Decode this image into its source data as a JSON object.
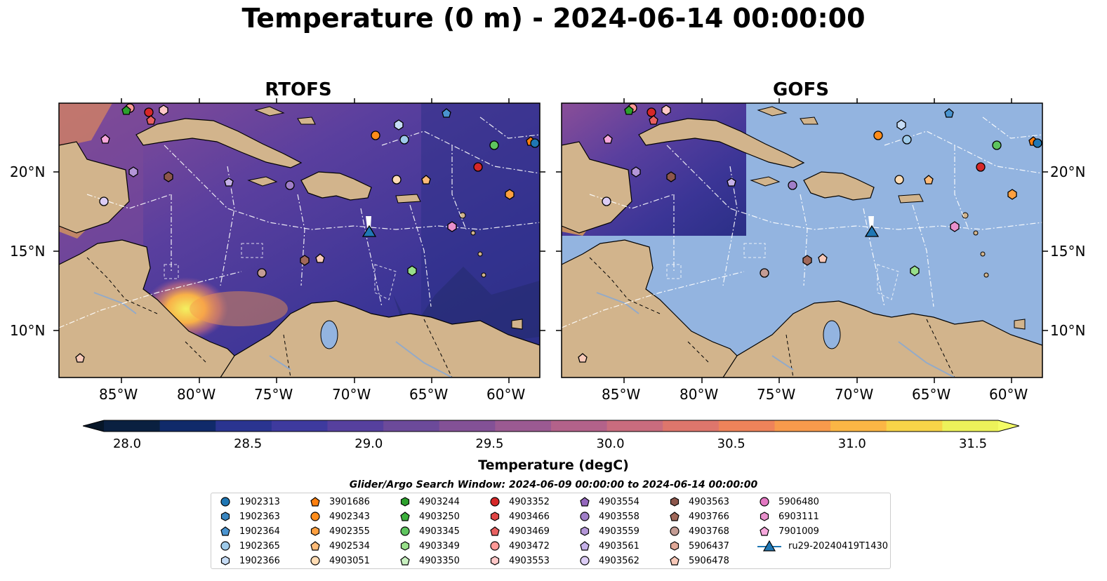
{
  "title": "Temperature (0 m) - 2024-06-14 00:00:00",
  "panels": [
    {
      "title": "RTOFS"
    },
    {
      "title": "GOFS"
    }
  ],
  "lon_ticks": [
    "85°W",
    "80°W",
    "75°W",
    "70°W",
    "65°W",
    "60°W"
  ],
  "lat_ticks": [
    "20°N",
    "15°N",
    "10°N"
  ],
  "colorbar": {
    "label": "Temperature (degC)",
    "ticks": [
      "28.0",
      "28.5",
      "29.0",
      "29.5",
      "30.0",
      "30.5",
      "31.0",
      "31.5"
    ],
    "colors": [
      "#0a2040",
      "#102a6a",
      "#2a3490",
      "#3e3a9e",
      "#56409e",
      "#6c4a9a",
      "#835196",
      "#9b5a92",
      "#b3628a",
      "#c96c7e",
      "#de766c",
      "#ee835a",
      "#f79a4c",
      "#fbb645",
      "#f7d448",
      "#edf25a"
    ]
  },
  "search_window": "Glider/Argo Search Window: 2024-06-09 00:00:00 to 2024-06-14 00:00:00",
  "legend": [
    {
      "label": "1902313",
      "color": "#1f77b4",
      "shape": "circle"
    },
    {
      "label": "1902363",
      "color": "#3a86c0",
      "shape": "hexagon"
    },
    {
      "label": "1902364",
      "color": "#4a94d0",
      "shape": "pentagon"
    },
    {
      "label": "1902365",
      "color": "#9ecae9",
      "shape": "circle"
    },
    {
      "label": "1902366",
      "color": "#c6dcf5",
      "shape": "hexagon"
    },
    {
      "label": "3901686",
      "color": "#ff7f0e",
      "shape": "pentagon"
    },
    {
      "label": "4902343",
      "color": "#ff8c1a",
      "shape": "circle"
    },
    {
      "label": "4902355",
      "color": "#ffa040",
      "shape": "hexagon"
    },
    {
      "label": "4902534",
      "color": "#ffbb78",
      "shape": "pentagon"
    },
    {
      "label": "4903051",
      "color": "#ffdcb4",
      "shape": "circle"
    },
    {
      "label": "4903244",
      "color": "#2ca02c",
      "shape": "hexagon"
    },
    {
      "label": "4903250",
      "color": "#3cb03c",
      "shape": "pentagon"
    },
    {
      "label": "4903345",
      "color": "#5ec45e",
      "shape": "circle"
    },
    {
      "label": "4903349",
      "color": "#98df8a",
      "shape": "hexagon"
    },
    {
      "label": "4903350",
      "color": "#c8f0c0",
      "shape": "pentagon"
    },
    {
      "label": "4903352",
      "color": "#d62728",
      "shape": "circle"
    },
    {
      "label": "4903466",
      "color": "#e04545",
      "shape": "hexagon"
    },
    {
      "label": "4903469",
      "color": "#e86060",
      "shape": "pentagon"
    },
    {
      "label": "4903472",
      "color": "#ff9896",
      "shape": "circle"
    },
    {
      "label": "4903553",
      "color": "#ffc8c8",
      "shape": "hexagon"
    },
    {
      "label": "4903554",
      "color": "#9467bd",
      "shape": "pentagon"
    },
    {
      "label": "4903558",
      "color": "#a07ec8",
      "shape": "circle"
    },
    {
      "label": "4903559",
      "color": "#b496d8",
      "shape": "hexagon"
    },
    {
      "label": "4903561",
      "color": "#c5b0e8",
      "shape": "pentagon"
    },
    {
      "label": "4903562",
      "color": "#dccdf5",
      "shape": "circle"
    },
    {
      "label": "4903563",
      "color": "#8c564b",
      "shape": "hexagon"
    },
    {
      "label": "4903766",
      "color": "#a0685a",
      "shape": "pentagon"
    },
    {
      "label": "4903768",
      "color": "#c49c94",
      "shape": "circle"
    },
    {
      "label": "5906437",
      "color": "#e0a898",
      "shape": "hexagon"
    },
    {
      "label": "5906478",
      "color": "#f7c8b8",
      "shape": "pentagon"
    },
    {
      "label": "5906480",
      "color": "#e377c2",
      "shape": "circle"
    },
    {
      "label": "6903111",
      "color": "#e890cc",
      "shape": "hexagon"
    },
    {
      "label": "7901009",
      "color": "#f7a8dc",
      "shape": "pentagon"
    },
    {
      "label": "ru29-20240419T1430",
      "color": "#1f77b4",
      "shape": "triangle-line"
    }
  ]
}
